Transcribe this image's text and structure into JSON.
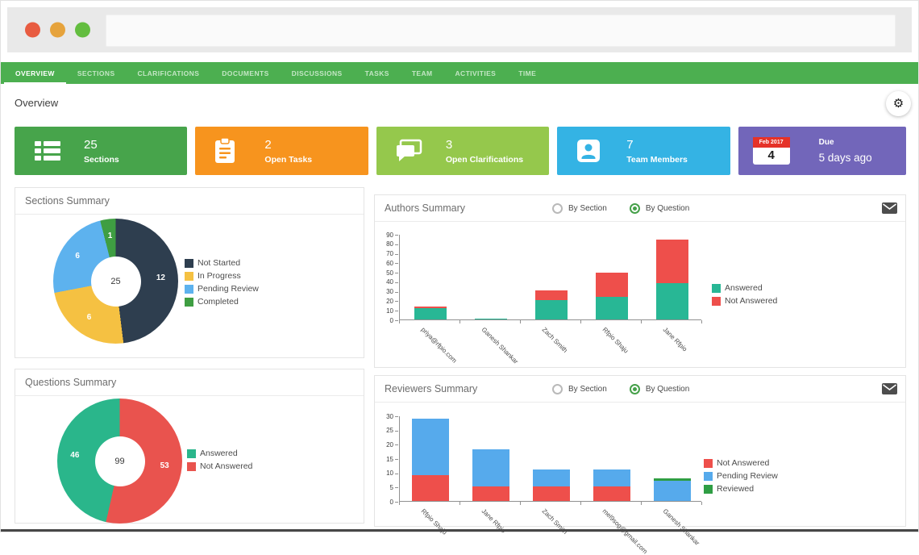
{
  "window": {
    "url_value": "",
    "traffic_lights": [
      {
        "name": "close",
        "color": "#e85c41"
      },
      {
        "name": "minimize",
        "color": "#e6a33c"
      },
      {
        "name": "maximize",
        "color": "#63bd3f"
      }
    ]
  },
  "nav": {
    "bg_color": "#4caf50",
    "tabs": [
      {
        "label": "OVERVIEW",
        "active": true
      },
      {
        "label": "SECTIONS",
        "active": false
      },
      {
        "label": "CLARIFICATIONS",
        "active": false
      },
      {
        "label": "DOCUMENTS",
        "active": false
      },
      {
        "label": "DISCUSSIONS",
        "active": false
      },
      {
        "label": "TASKS",
        "active": false
      },
      {
        "label": "TEAM",
        "active": false
      },
      {
        "label": "ACTIVITIES",
        "active": false
      },
      {
        "label": "TIME",
        "active": false
      }
    ]
  },
  "page": {
    "title": "Overview"
  },
  "stat_cards": [
    {
      "value": "25",
      "label": "Sections",
      "color": "#47a44b",
      "icon": "list-icon"
    },
    {
      "value": "2",
      "label": "Open Tasks",
      "color": "#f7941e",
      "icon": "clipboard-icon"
    },
    {
      "value": "3",
      "label": "Open Clarifications",
      "color": "#95c84c",
      "icon": "chat-icon"
    },
    {
      "value": "7",
      "label": "Team Members",
      "color": "#34b3e4",
      "icon": "person-icon"
    },
    {
      "label_top": "Due",
      "label_bottom": "5 days ago",
      "color": "#7266ba",
      "icon": "calendar-icon",
      "calendar": {
        "month": "Feb 2017",
        "day": "4"
      }
    }
  ],
  "panels": {
    "sections_summary": {
      "title": "Sections Summary"
    },
    "authors_summary": {
      "title": "Authors Summary",
      "radios": [
        {
          "label": "By Section",
          "selected": false
        },
        {
          "label": "By Question",
          "selected": true
        }
      ],
      "mail_icon": "mail-icon"
    },
    "questions_summary": {
      "title": "Questions Summary"
    },
    "reviewers_summary": {
      "title": "Reviewers Summary",
      "radios": [
        {
          "label": "By Section",
          "selected": false
        },
        {
          "label": "By Question",
          "selected": true
        }
      ],
      "mail_icon": "mail-icon"
    }
  },
  "chart_data": [
    {
      "id": "sections_donut",
      "type": "pie",
      "donut": true,
      "title": "Sections Summary",
      "center_label": "25",
      "slices": [
        {
          "label": "Not Started",
          "value": 12,
          "color": "#2e3e4f"
        },
        {
          "label": "In Progress",
          "value": 6,
          "color": "#f5c142"
        },
        {
          "label": "Pending Review",
          "value": 6,
          "color": "#5db2ee"
        },
        {
          "label": "Completed",
          "value": 1,
          "color": "#3f9e42"
        }
      ],
      "legend": [
        "Not Started",
        "In Progress",
        "Pending Review",
        "Completed"
      ],
      "legend_position": "right"
    },
    {
      "id": "authors_bars",
      "type": "bar",
      "stacked": true,
      "title": "Authors Summary",
      "categories": [
        "priya@rfpio.com",
        "Ganesh Shankar",
        "Zach Smith",
        "Rfpio Shaju",
        "Jane Rfpio"
      ],
      "series": [
        {
          "name": "Answered",
          "color": "#28b795",
          "values": [
            12,
            1,
            20,
            24,
            38
          ]
        },
        {
          "name": "Not Answered",
          "color": "#ee4f4b",
          "values": [
            2,
            0,
            11,
            25,
            46
          ]
        }
      ],
      "ylim": [
        0,
        90
      ],
      "ytick_step": 10,
      "grid": false,
      "legend_position": "right"
    },
    {
      "id": "questions_donut",
      "type": "pie",
      "donut": true,
      "title": "Questions Summary",
      "center_label": "99",
      "slices": [
        {
          "label": "Not Answered",
          "value": 53,
          "color": "#e9534e"
        },
        {
          "label": "Answered",
          "value": 46,
          "color": "#2ab68b"
        }
      ],
      "legend": [
        "Answered",
        "Not Answered"
      ],
      "legend_position": "right"
    },
    {
      "id": "reviewers_bars",
      "type": "bar",
      "stacked": true,
      "title": "Reviewers Summary",
      "categories": [
        "Rfpio Shaju",
        "Jane Rfpio",
        "Zach Smith",
        "mel9sog@gmail.com",
        "Ganesh Shankar"
      ],
      "series": [
        {
          "name": "Not Answered",
          "color": "#ee4f4b",
          "values": [
            9,
            5,
            5,
            5,
            0
          ]
        },
        {
          "name": "Pending Review",
          "color": "#56aaec",
          "values": [
            20,
            13,
            6,
            6,
            7
          ]
        },
        {
          "name": "Reviewed",
          "color": "#2f9e44",
          "values": [
            0,
            0,
            0,
            0,
            1
          ]
        }
      ],
      "ylim": [
        0,
        30
      ],
      "ytick_step": 5,
      "grid": false,
      "legend_position": "right"
    }
  ]
}
